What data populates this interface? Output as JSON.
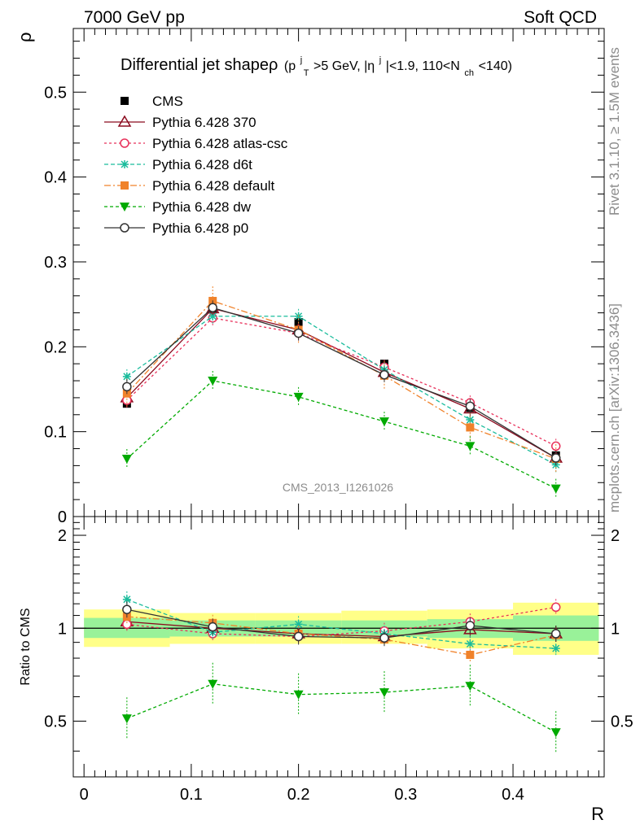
{
  "header": {
    "left": "7000 GeV pp",
    "right": "Soft QCD",
    "rivet": "Rivet 3.1.10, ≥ 1.5M events",
    "mcplots": "mcplots.cern.ch [arXiv:1306.3436]"
  },
  "chart_data": [
    {
      "type": "line",
      "title": "Differential jet shapeρ (p_T^j>5 GeV, |η^j|<1.9, 110<N_ch<140)",
      "title_parts": {
        "main": "Differential jet shapeρ",
        "p_open": "(p",
        "p_sup": "j",
        "p_sub": "T",
        "p_cond": ">5 GeV, |η",
        "eta_sup": "j",
        "eta_cond": "|<1.9, 110<N",
        "n_sub": "ch",
        "n_cond": "<140)"
      },
      "ylabel": "ρ",
      "ylim": [
        0,
        0.575
      ],
      "xlim": [
        -0.01,
        0.485
      ],
      "yticks": [
        {
          "v": 0,
          "label": "0"
        },
        {
          "v": 0.1,
          "label": "0.1"
        },
        {
          "v": 0.2,
          "label": "0.2"
        },
        {
          "v": 0.3,
          "label": "0.3"
        },
        {
          "v": 0.4,
          "label": "0.4"
        },
        {
          "v": 0.5,
          "label": "0.5"
        }
      ],
      "watermark": "CMS_2013_I1261026",
      "x": [
        0.04,
        0.12,
        0.2,
        0.28,
        0.36,
        0.44
      ],
      "series": [
        {
          "name": "CMS",
          "color": "#000000",
          "marker": "square",
          "dash": "",
          "values": [
            0.133,
            0.244,
            0.229,
            0.18,
            0.128,
            0.072
          ]
        },
        {
          "name": "Pythia 6.428 370",
          "color": "#8b0a1e",
          "marker": "triangle-open",
          "dash": "",
          "values": [
            0.14,
            0.245,
            0.22,
            0.17,
            0.127,
            0.069
          ]
        },
        {
          "name": "Pythia 6.428 atlas-csc",
          "color": "#e8305a",
          "marker": "circle-open",
          "dash": "3,3",
          "values": [
            0.137,
            0.234,
            0.216,
            0.176,
            0.134,
            0.083
          ]
        },
        {
          "name": "Pythia 6.428 d6t",
          "color": "#1abc9c",
          "marker": "star",
          "dash": "5,3",
          "values": [
            0.165,
            0.236,
            0.236,
            0.173,
            0.114,
            0.061
          ]
        },
        {
          "name": "Pythia 6.428 default",
          "color": "#f0822a",
          "marker": "square",
          "dash": "8,3,2,3",
          "values": [
            0.145,
            0.254,
            0.22,
            0.166,
            0.105,
            0.068
          ]
        },
        {
          "name": "Pythia 6.428 dw",
          "color": "#00aa00",
          "marker": "triangle-down",
          "dash": "4,3",
          "values": [
            0.068,
            0.16,
            0.141,
            0.112,
            0.083,
            0.033
          ]
        },
        {
          "name": "Pythia 6.428 p0",
          "color": "#333333",
          "marker": "circle-open",
          "dash": "",
          "values": [
            0.153,
            0.246,
            0.216,
            0.167,
            0.13,
            0.069
          ]
        }
      ]
    },
    {
      "type": "line",
      "ylabel": "Ratio to CMS",
      "xlabel": "R",
      "ylim": [
        0.33,
        2.3
      ],
      "scale": "log",
      "yticks": [
        {
          "v": 0.5,
          "label": "0.5"
        },
        {
          "v": 1,
          "label": "1"
        },
        {
          "v": 2,
          "label": "2"
        }
      ],
      "xticks": [
        {
          "v": 0,
          "label": "0"
        },
        {
          "v": 0.1,
          "label": "0.1"
        },
        {
          "v": 0.2,
          "label": "0.2"
        },
        {
          "v": 0.3,
          "label": "0.3"
        },
        {
          "v": 0.4,
          "label": "0.4"
        }
      ],
      "bands": [
        {
          "x0": 0.0,
          "x1": 0.08,
          "y1lo": 0.93,
          "y1hi": 1.08,
          "y2lo": 0.87,
          "y2hi": 1.15
        },
        {
          "x0": 0.08,
          "x1": 0.16,
          "y1lo": 0.94,
          "y1hi": 1.06,
          "y2lo": 0.89,
          "y2hi": 1.12
        },
        {
          "x0": 0.16,
          "x1": 0.24,
          "y1lo": 0.94,
          "y1hi": 1.06,
          "y2lo": 0.89,
          "y2hi": 1.12
        },
        {
          "x0": 0.24,
          "x1": 0.32,
          "y1lo": 0.94,
          "y1hi": 1.06,
          "y2lo": 0.89,
          "y2hi": 1.14
        },
        {
          "x0": 0.32,
          "x1": 0.4,
          "y1lo": 0.93,
          "y1hi": 1.07,
          "y2lo": 0.86,
          "y2hi": 1.15
        },
        {
          "x0": 0.4,
          "x1": 0.48,
          "y1lo": 0.91,
          "y1hi": 1.1,
          "y2lo": 0.82,
          "y2hi": 1.21
        }
      ],
      "x": [
        0.04,
        0.12,
        0.2,
        0.28,
        0.36,
        0.44
      ],
      "series": [
        {
          "name": "Pythia 6.428 370",
          "values": [
            1.05,
            1.0,
            0.96,
            0.94,
            0.99,
            0.96
          ]
        },
        {
          "name": "Pythia 6.428 atlas-csc",
          "values": [
            1.03,
            0.96,
            0.94,
            0.98,
            1.05,
            1.17
          ]
        },
        {
          "name": "Pythia 6.428 d6t",
          "values": [
            1.24,
            0.97,
            1.03,
            0.96,
            0.89,
            0.86
          ]
        },
        {
          "name": "Pythia 6.428 default",
          "values": [
            1.09,
            1.04,
            0.96,
            0.92,
            0.82,
            0.95
          ]
        },
        {
          "name": "Pythia 6.428 dw",
          "values": [
            0.51,
            0.66,
            0.61,
            0.62,
            0.65,
            0.46
          ]
        },
        {
          "name": "Pythia 6.428 p0",
          "values": [
            1.15,
            1.01,
            0.94,
            0.93,
            1.02,
            0.96
          ]
        }
      ]
    }
  ]
}
